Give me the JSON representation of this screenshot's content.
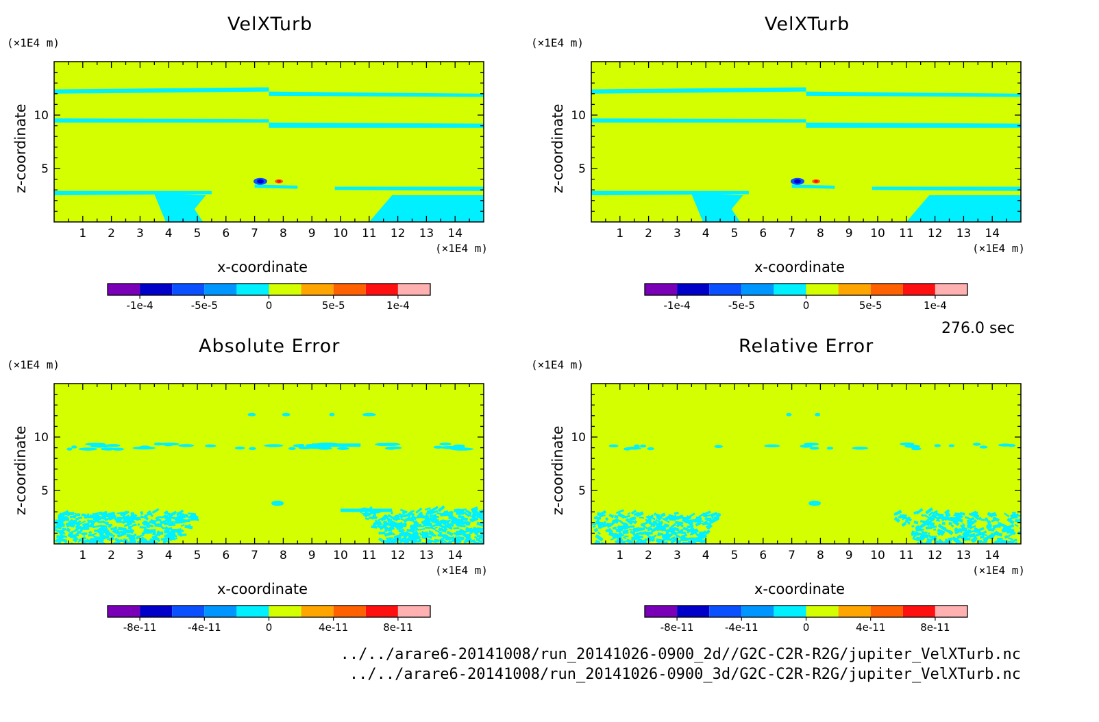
{
  "palette": [
    "#7a00b8",
    "#0000c8",
    "#0a50ff",
    "#0096ff",
    "#00f0ff",
    "#d4ff00",
    "#ffa500",
    "#ff6000",
    "#ff1010",
    "#ffb0b0"
  ],
  "field_color": "#d4ff00",
  "feature_color": "#00f0ff",
  "time_label": "276.0 sec",
  "file_paths": [
    "../../arare6-20141008/run_20141026-0900_2d//G2C-C2R-R2G/jupiter_VelXTurb.nc",
    "../../arare6-20141008/run_20141026-0900_3d/G2C-C2R-R2G/jupiter_VelXTurb.nc"
  ],
  "chart_data": [
    {
      "type": "heatmap",
      "title": "VelXTurb",
      "xlabel": "x-coordinate",
      "ylabel": "z-coordinate",
      "x_unit": "(×1E4 m)",
      "y_unit": "(×1E4 m)",
      "xlim": [
        0,
        15
      ],
      "ylim": [
        0,
        15
      ],
      "x_ticks": [
        "1",
        "2",
        "3",
        "4",
        "5",
        "6",
        "7",
        "8",
        "9",
        "10",
        "11",
        "12",
        "13",
        "14"
      ],
      "y_ticks": [
        "5",
        "10"
      ],
      "colorbar": {
        "levels": 10,
        "labels": [
          "-1e-4",
          "-5e-5",
          "0",
          "5e-5",
          "1e-4"
        ]
      }
    },
    {
      "type": "heatmap",
      "title": "VelXTurb",
      "xlabel": "x-coordinate",
      "ylabel": "z-coordinate",
      "x_unit": "(×1E4 m)",
      "y_unit": "(×1E4 m)",
      "xlim": [
        0,
        15
      ],
      "ylim": [
        0,
        15
      ],
      "x_ticks": [
        "1",
        "2",
        "3",
        "4",
        "5",
        "6",
        "7",
        "8",
        "9",
        "10",
        "11",
        "12",
        "13",
        "14"
      ],
      "y_ticks": [
        "5",
        "10"
      ],
      "colorbar": {
        "levels": 10,
        "labels": [
          "-1e-4",
          "-5e-5",
          "0",
          "5e-5",
          "1e-4"
        ]
      }
    },
    {
      "type": "heatmap",
      "title": "Absolute Error",
      "xlabel": "x-coordinate",
      "ylabel": "z-coordinate",
      "x_unit": "(×1E4 m)",
      "y_unit": "(×1E4 m)",
      "xlim": [
        0,
        15
      ],
      "ylim": [
        0,
        15
      ],
      "x_ticks": [
        "1",
        "2",
        "3",
        "4",
        "5",
        "6",
        "7",
        "8",
        "9",
        "10",
        "11",
        "12",
        "13",
        "14"
      ],
      "y_ticks": [
        "5",
        "10"
      ],
      "colorbar": {
        "levels": 10,
        "labels": [
          "-8e-11",
          "-4e-11",
          "0",
          "4e-11",
          "8e-11"
        ]
      }
    },
    {
      "type": "heatmap",
      "title": "Relative Error",
      "xlabel": "x-coordinate",
      "ylabel": "z-coordinate",
      "x_unit": "(×1E4 m)",
      "y_unit": "(×1E4 m)",
      "xlim": [
        0,
        15
      ],
      "ylim": [
        0,
        15
      ],
      "x_ticks": [
        "1",
        "2",
        "3",
        "4",
        "5",
        "6",
        "7",
        "8",
        "9",
        "10",
        "11",
        "12",
        "13",
        "14"
      ],
      "y_ticks": [
        "5",
        "10"
      ],
      "colorbar": {
        "levels": 10,
        "labels": [
          "-8e-11",
          "-4e-11",
          "0",
          "4e-11",
          "8e-11"
        ]
      }
    }
  ]
}
